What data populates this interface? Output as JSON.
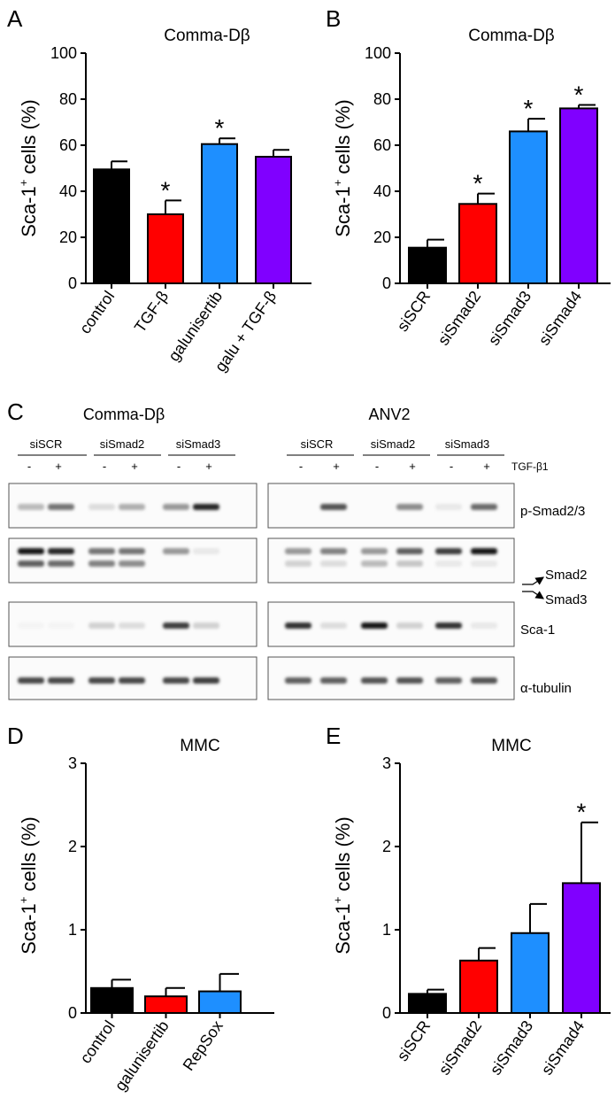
{
  "panels": {
    "A": "A",
    "B": "B",
    "C": "C",
    "D": "D",
    "E": "E"
  },
  "ylabel_main": "Sca-1",
  "ylabel_sup": "+",
  "ylabel_tail": " cells (%)",
  "star_symbol": "*",
  "chart_data": [
    {
      "id": "A",
      "type": "bar",
      "title": "Comma-Dβ",
      "ylabel": "Sca-1+ cells (%)",
      "ylim": [
        0,
        100
      ],
      "yticks": [
        0,
        20,
        40,
        60,
        80,
        100
      ],
      "categories": [
        "control",
        "TGF-β",
        "galunisertib",
        "galu + TGF-β"
      ],
      "values": [
        49.5,
        30,
        60.5,
        55
      ],
      "errors": [
        3.5,
        6,
        2.5,
        3
      ],
      "colors": [
        "#000000",
        "#ff0000",
        "#1e8fff",
        "#8000ff"
      ],
      "significant": [
        false,
        true,
        true,
        false
      ]
    },
    {
      "id": "B",
      "type": "bar",
      "title": "Comma-Dβ",
      "ylabel": "Sca-1+ cells (%)",
      "ylim": [
        0,
        100
      ],
      "yticks": [
        0,
        20,
        40,
        60,
        80,
        100
      ],
      "categories": [
        "siSCR",
        "siSmad2",
        "siSmad3",
        "siSmad4"
      ],
      "values": [
        15.5,
        34.5,
        66,
        76
      ],
      "errors": [
        3.5,
        4.5,
        5.5,
        1.5
      ],
      "colors": [
        "#000000",
        "#ff0000",
        "#1e8fff",
        "#8000ff"
      ],
      "significant": [
        false,
        true,
        true,
        true
      ]
    },
    {
      "id": "D",
      "type": "bar",
      "title": "MMC",
      "ylabel": "Sca-1+ cells (%)",
      "ylim": [
        0,
        3
      ],
      "yticks": [
        0,
        1,
        2,
        3
      ],
      "categories": [
        "control",
        "galunisertib",
        "RepSox"
      ],
      "values": [
        0.3,
        0.2,
        0.26
      ],
      "errors": [
        0.1,
        0.1,
        0.21
      ],
      "colors": [
        "#000000",
        "#ff0000",
        "#1e8fff"
      ],
      "significant": [
        false,
        false,
        false
      ]
    },
    {
      "id": "E",
      "type": "bar",
      "title": "MMC",
      "ylabel": "Sca-1+ cells (%)",
      "ylim": [
        0,
        3
      ],
      "yticks": [
        0,
        1,
        2,
        3
      ],
      "categories": [
        "siSCR",
        "siSmad2",
        "siSmad3",
        "siSmad4"
      ],
      "values": [
        0.23,
        0.63,
        0.96,
        1.56
      ],
      "errors": [
        0.05,
        0.15,
        0.35,
        0.73
      ],
      "colors": [
        "#000000",
        "#ff0000",
        "#1e8fff",
        "#8000ff"
      ],
      "significant": [
        false,
        false,
        false,
        true
      ]
    }
  ],
  "blot": {
    "left_title": "Comma-Dβ",
    "right_title": "ANV2",
    "groups": [
      "siSCR",
      "siSmad2",
      "siSmad3"
    ],
    "minus": "-",
    "plus": "+",
    "treatment": "TGF-β1",
    "rows": [
      "p-Smad2/3",
      "",
      "Sca-1",
      "α-tubulin"
    ],
    "smad2": "Smad2",
    "smad3": "Smad3"
  }
}
